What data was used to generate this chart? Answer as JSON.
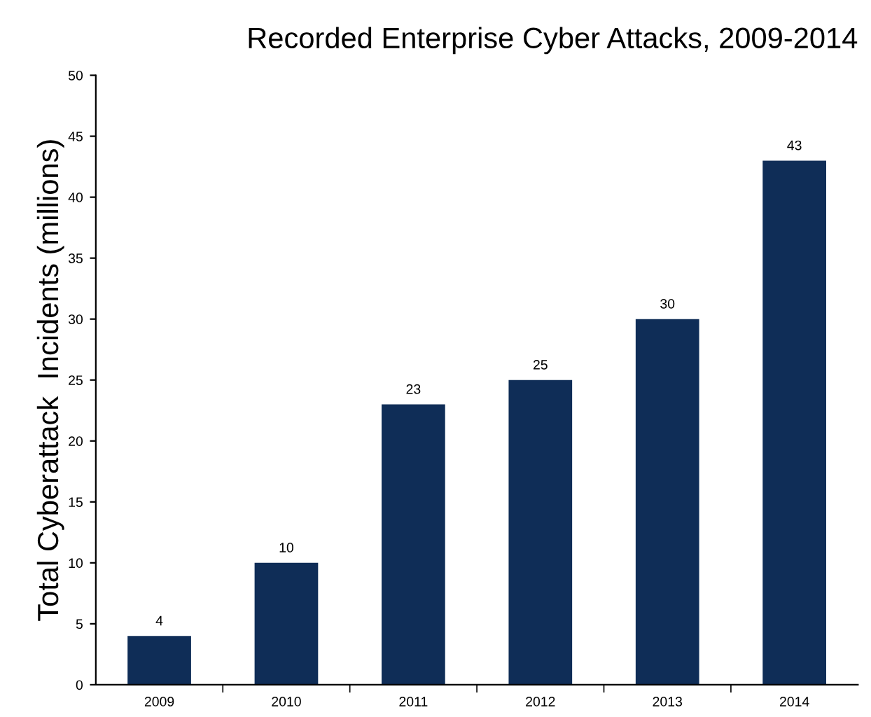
{
  "chart_data": {
    "type": "bar",
    "title": "Recorded Enterprise Cyber Attacks, 2009-2014",
    "ylabel": "Total Cyberattack  Incidents (millions)",
    "categories": [
      "2009",
      "2010",
      "2011",
      "2012",
      "2013",
      "2014"
    ],
    "values": [
      4,
      10,
      23,
      25,
      30,
      43
    ],
    "color": "#0f2d57",
    "ylim": [
      0,
      50
    ],
    "yticks": [
      0,
      5,
      10,
      15,
      20,
      25,
      30,
      35,
      40,
      45,
      50
    ],
    "grid": false,
    "data_labels": true
  }
}
